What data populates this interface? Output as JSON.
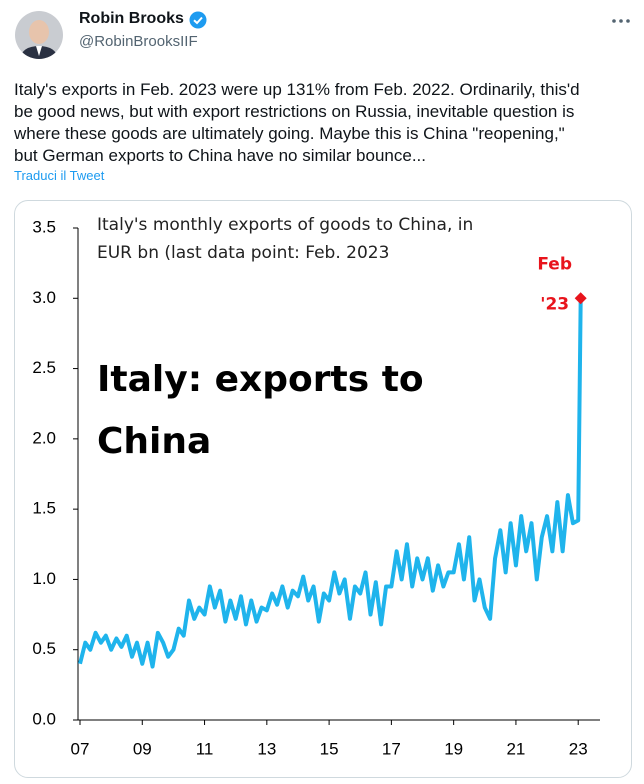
{
  "author": {
    "name": "Robin Brooks",
    "handle": "@RobinBrooksIIF"
  },
  "tweet": {
    "lines": [
      "Italy's exports in Feb. 2023 were up 131% from Feb. 2022. Ordinarily, this'd",
      "be good news, but with export restrictions on Russia, inevitable question is",
      "where these goods are ultimately going. Maybe this is China \"reopening,\"",
      "but German exports to China have no similar bounce..."
    ],
    "translate": "Traduci il Tweet"
  },
  "chart_data": {
    "type": "line",
    "title": [
      "Italy's monthly exports of goods to China, in",
      "EUR bn (last data point: Feb. 2023"
    ],
    "annotations": [
      "Italy: exports to",
      "China"
    ],
    "last_label": [
      "Feb",
      "'23"
    ],
    "x": [
      2007,
      2007.17,
      2007.33,
      2007.5,
      2007.67,
      2007.83,
      2008,
      2008.17,
      2008.33,
      2008.5,
      2008.67,
      2008.83,
      2009,
      2009.17,
      2009.33,
      2009.5,
      2009.67,
      2009.83,
      2010,
      2010.17,
      2010.33,
      2010.5,
      2010.67,
      2010.83,
      2011,
      2011.17,
      2011.33,
      2011.5,
      2011.67,
      2011.83,
      2012,
      2012.17,
      2012.33,
      2012.5,
      2012.67,
      2012.83,
      2013,
      2013.17,
      2013.33,
      2013.5,
      2013.67,
      2013.83,
      2014,
      2014.17,
      2014.33,
      2014.5,
      2014.67,
      2014.83,
      2015,
      2015.17,
      2015.33,
      2015.5,
      2015.67,
      2015.83,
      2016,
      2016.17,
      2016.33,
      2016.5,
      2016.67,
      2016.83,
      2017,
      2017.17,
      2017.33,
      2017.5,
      2017.67,
      2017.83,
      2018,
      2018.17,
      2018.33,
      2018.5,
      2018.67,
      2018.83,
      2019,
      2019.17,
      2019.33,
      2019.5,
      2019.67,
      2019.83,
      2020,
      2020.17,
      2020.33,
      2020.5,
      2020.67,
      2020.83,
      2021,
      2021.17,
      2021.33,
      2021.5,
      2021.67,
      2021.83,
      2022,
      2022.17,
      2022.33,
      2022.5,
      2022.67,
      2022.83,
      2023,
      2023.08
    ],
    "series": [
      {
        "color": "#1fb4ec",
        "values": [
          0.4,
          0.55,
          0.5,
          0.62,
          0.55,
          0.6,
          0.5,
          0.58,
          0.52,
          0.6,
          0.45,
          0.55,
          0.4,
          0.55,
          0.38,
          0.62,
          0.55,
          0.45,
          0.5,
          0.65,
          0.6,
          0.85,
          0.72,
          0.8,
          0.75,
          0.95,
          0.8,
          0.92,
          0.7,
          0.85,
          0.72,
          0.88,
          0.68,
          0.85,
          0.7,
          0.8,
          0.78,
          0.9,
          0.82,
          0.95,
          0.8,
          0.92,
          0.88,
          1.02,
          0.85,
          0.95,
          0.7,
          0.9,
          0.85,
          1.05,
          0.9,
          1.0,
          0.72,
          0.95,
          0.9,
          1.05,
          0.75,
          0.98,
          0.68,
          0.95,
          0.95,
          1.2,
          1.0,
          1.25,
          0.95,
          1.15,
          1.0,
          1.15,
          0.92,
          1.1,
          0.95,
          1.05,
          1.05,
          1.25,
          1.0,
          1.3,
          0.85,
          1.0,
          0.8,
          0.72,
          1.15,
          1.35,
          1.05,
          1.4,
          1.1,
          1.45,
          1.2,
          1.4,
          1.0,
          1.3,
          1.45,
          1.2,
          1.55,
          1.2,
          1.6,
          1.4,
          1.42,
          3.0
        ]
      }
    ],
    "highlight_color": "#e8141c",
    "xlim": [
      2007,
      2023.7
    ],
    "xticks": [
      {
        "value": 2007,
        "label": "07"
      },
      {
        "value": 2009,
        "label": "09"
      },
      {
        "value": 2011,
        "label": "11"
      },
      {
        "value": 2013,
        "label": "13"
      },
      {
        "value": 2015,
        "label": "15"
      },
      {
        "value": 2017,
        "label": "17"
      },
      {
        "value": 2019,
        "label": "19"
      },
      {
        "value": 2021,
        "label": "21"
      },
      {
        "value": 2023,
        "label": "23"
      }
    ],
    "ylim": [
      0,
      3.5
    ],
    "yticks": [
      {
        "value": 0,
        "label": "0.0"
      },
      {
        "value": 0.5,
        "label": "0.5"
      },
      {
        "value": 1,
        "label": "1.0"
      },
      {
        "value": 1.5,
        "label": "1.5"
      },
      {
        "value": 2,
        "label": "2.0"
      },
      {
        "value": 2.5,
        "label": "2.5"
      },
      {
        "value": 3,
        "label": "3.0"
      },
      {
        "value": 3.5,
        "label": "3.5"
      }
    ]
  }
}
